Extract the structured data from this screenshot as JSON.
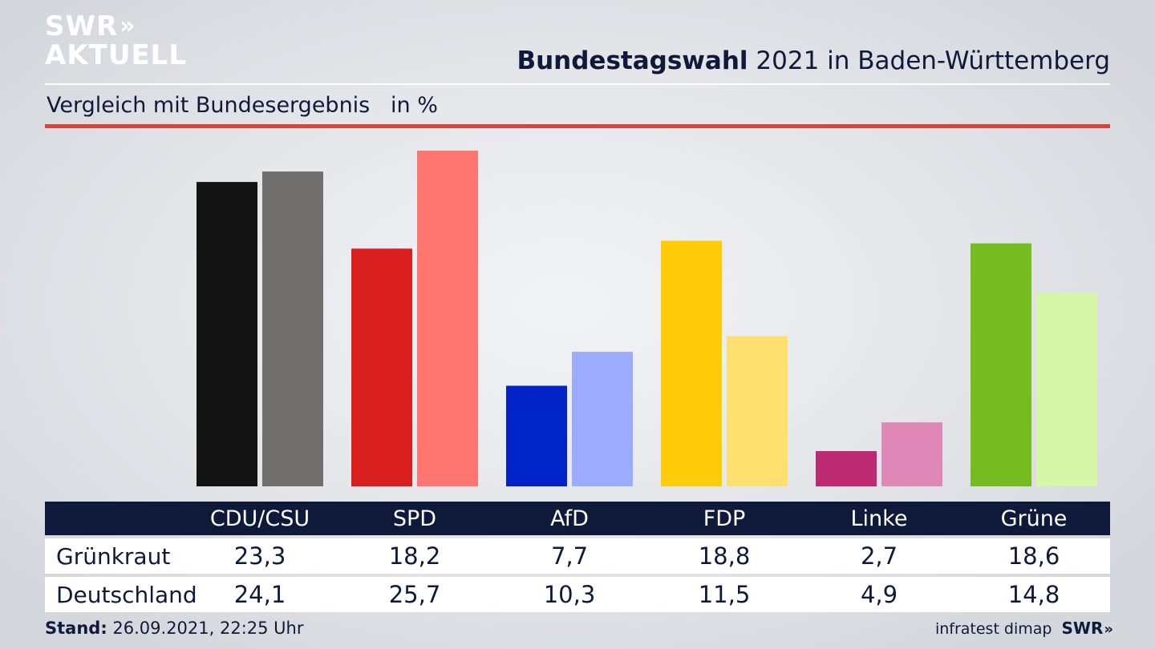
{
  "brand": {
    "logo_line1": "SWR",
    "logo_chevrons": "»",
    "logo_line2": "AKTUELL"
  },
  "header": {
    "title_bold": "Bundestagswahl",
    "title_rest": " 2021 in Baden-Württemberg",
    "subtitle": "Vergleich mit Bundesergebnis   in %"
  },
  "colors": {
    "red_rule": "#d9443a",
    "table_header_bg": "#0f1a3a"
  },
  "chart_data": {
    "type": "bar",
    "categories": [
      "CDU/CSU",
      "SPD",
      "AfD",
      "FDP",
      "Linke",
      "Grüne"
    ],
    "series": [
      {
        "name": "Grünkraut",
        "values": [
          23.3,
          18.2,
          7.7,
          18.8,
          2.7,
          18.6
        ],
        "colors": [
          "#141414",
          "#d81e1e",
          "#0023c8",
          "#ffcc0a",
          "#be2a72",
          "#76bb20"
        ]
      },
      {
        "name": "Deutschland",
        "values": [
          24.1,
          25.7,
          10.3,
          11.5,
          4.9,
          14.8
        ],
        "colors": [
          "#716f6d",
          "#ff7570",
          "#9dabff",
          "#fde070",
          "#df88b7",
          "#d6f7a8"
        ]
      }
    ],
    "value_labels": [
      [
        "23,3",
        "18,2",
        "7,7",
        "18,8",
        "2,7",
        "18,6"
      ],
      [
        "24,1",
        "25,7",
        "10,3",
        "11,5",
        "4,9",
        "14,8"
      ]
    ],
    "ylim": [
      0,
      25.7
    ],
    "grid": false
  },
  "footer": {
    "stand_label": "Stand:",
    "stand_value": " 26.09.2021, 22:25 Uhr",
    "source": "infratest dimap",
    "swr_small": "SWR",
    "chev_small": "»"
  }
}
